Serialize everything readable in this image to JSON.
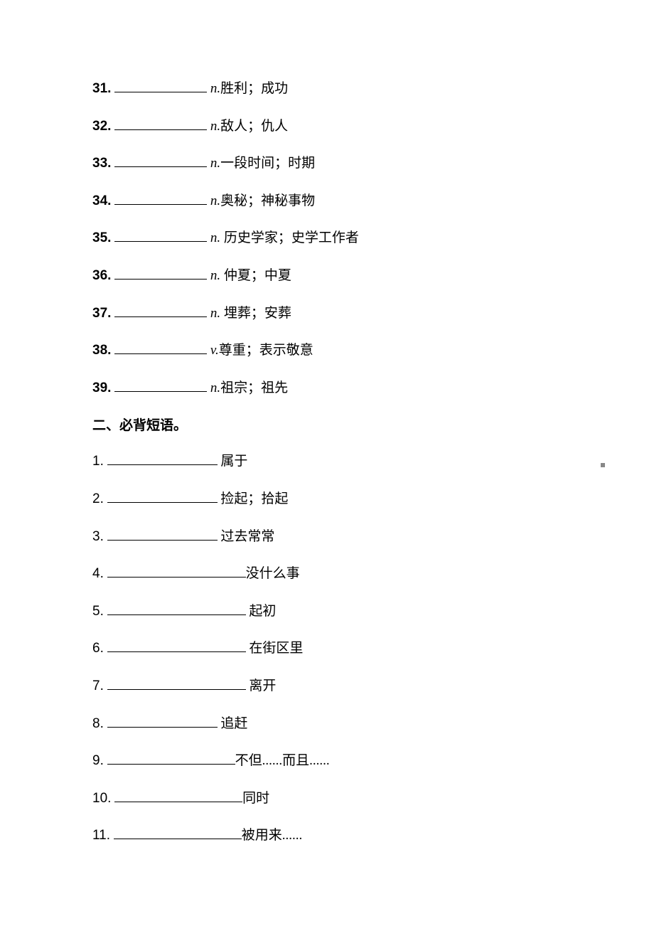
{
  "vocab": [
    {
      "num": "31.",
      "pos": "n.",
      "def": "胜利；成功",
      "bold": true,
      "blank": "blank-130",
      "space": false
    },
    {
      "num": "32.",
      "pos": "n.",
      "def": "敌人；仇人",
      "bold": true,
      "blank": "blank-130",
      "space": false
    },
    {
      "num": "33.",
      "pos": "n.",
      "def": "一段时间；时期",
      "bold": true,
      "blank": "blank-130",
      "space": false
    },
    {
      "num": "34.",
      "pos": "n.",
      "def": "奥秘；神秘事物",
      "bold": true,
      "blank": "blank-130",
      "space": false
    },
    {
      "num": "35.",
      "pos": "n.",
      "def": " 历史学家；史学工作者",
      "bold": true,
      "blank": "blank-130",
      "space": true
    },
    {
      "num": "36.",
      "pos": "n.",
      "def": " 仲夏；中夏",
      "bold": true,
      "blank": "blank-130",
      "space": true
    },
    {
      "num": "37.",
      "pos": "n.",
      "def": " 埋葬；安葬",
      "bold": true,
      "blank": "blank-130",
      "space": true
    },
    {
      "num": "38.",
      "pos": "v.",
      "def": "尊重；表示敬意",
      "bold": true,
      "blank": "blank-130",
      "space": false
    },
    {
      "num": "39.",
      "pos": "n.",
      "def": "祖宗；祖先",
      "bold": true,
      "blank": "blank-130",
      "space": false
    }
  ],
  "section2_heading": "二、必背短语。",
  "phrases": [
    {
      "num": "1.",
      "def": " 属于",
      "blank": "blank-150"
    },
    {
      "num": "2.",
      "def": " 捡起；拾起",
      "blank": "blank-150"
    },
    {
      "num": "3.",
      "def": " 过去常常",
      "blank": "blank-150"
    },
    {
      "num": "4.",
      "def": "没什么事",
      "blank": "blank-185"
    },
    {
      "num": "5.",
      "def": " 起初",
      "blank": "blank-185"
    },
    {
      "num": "6.",
      "def": " 在街区里",
      "blank": "blank-185"
    },
    {
      "num": "7.",
      "def": " 离开",
      "blank": "blank-185"
    },
    {
      "num": "8.",
      "def": " 追赶",
      "blank": "blank-150"
    },
    {
      "num": "9.",
      "def": "不但......而且......",
      "blank": "blank-170"
    },
    {
      "num": "10.",
      "def": "同时",
      "blank": "blank-170"
    },
    {
      "num": "11.",
      "def": "被用来......",
      "blank": "blank-170"
    }
  ]
}
